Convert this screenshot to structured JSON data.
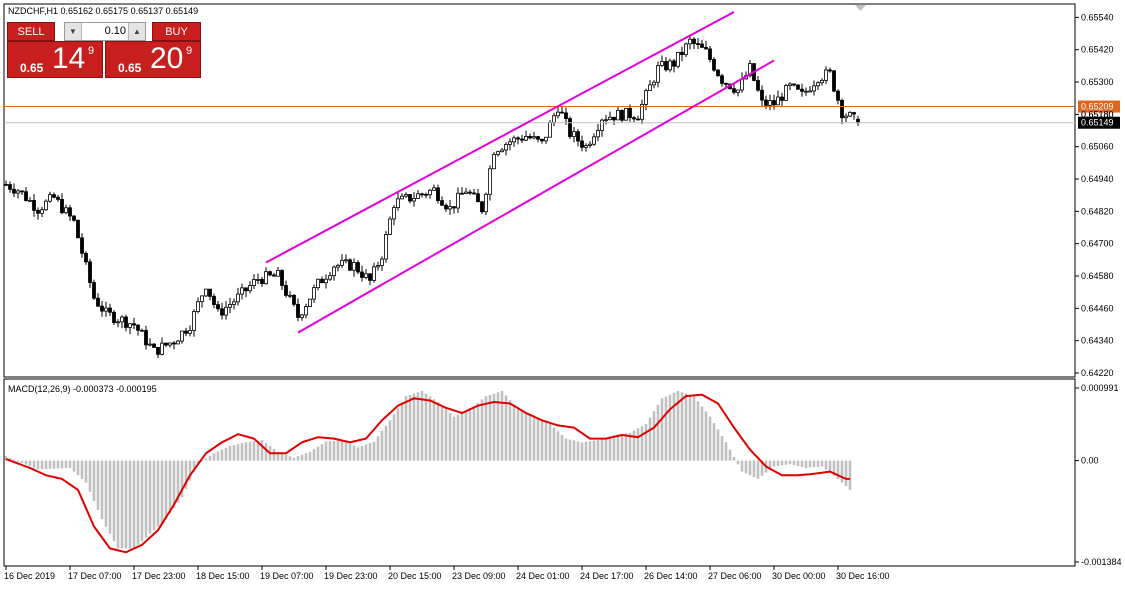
{
  "header": {
    "symbol_line": "NZDCHF,H1  0.65162 0.65175 0.65137 0.65149"
  },
  "trade_panel": {
    "sell_label": "SELL",
    "buy_label": "BUY",
    "lot_value": "0.10",
    "sell_price_small": "0.65",
    "sell_price_large": "14",
    "sell_price_sup": "9",
    "buy_price_small": "0.65",
    "buy_price_large": "20",
    "buy_price_sup": "9",
    "arrow_down": "▼",
    "arrow_up": "▲"
  },
  "colors": {
    "candle": "#000000",
    "channel": "#e000e0",
    "hline": "#e0651c",
    "bid_line": "#c0c0c0",
    "macd_hist": "#c0c0c0",
    "macd_signal": "#e00000",
    "sell_bg": "#c81e1e"
  },
  "chart_data": [
    {
      "type": "candlestick",
      "symbol": "NZDCHF",
      "timeframe": "H1",
      "ohlc_header": {
        "open": 0.65162,
        "high": 0.65175,
        "low": 0.65137,
        "close": 0.65149
      },
      "ylim": [
        0.6422,
        0.6556
      ],
      "y_ticks": [
        "0.65540",
        "0.65420",
        "0.65300",
        "0.65180",
        "0.65060",
        "0.64940",
        "0.64820",
        "0.64700",
        "0.64580",
        "0.64460",
        "0.64340",
        "0.64220"
      ],
      "x_ticks": [
        "16 Dec 2019",
        "17 Dec 07:00",
        "17 Dec 23:00",
        "18 Dec 15:00",
        "19 Dec 07:00",
        "19 Dec 23:00",
        "20 Dec 15:00",
        "23 Dec 09:00",
        "24 Dec 01:00",
        "24 Dec 17:00",
        "26 Dec 14:00",
        "27 Dec 06:00",
        "30 Dec 00:00",
        "30 Dec 16:00"
      ],
      "horizontal_line": {
        "value": 0.65209,
        "label": "0.65209"
      },
      "price_labels": [
        {
          "value": 0.6518,
          "label": "0.65180"
        },
        {
          "value": 0.65149,
          "label": "0.65149"
        }
      ],
      "channel_lines": [
        {
          "from": {
            "bar": 65,
            "price": 0.6463
          },
          "to": {
            "bar": 182,
            "price": 0.6556
          }
        },
        {
          "from": {
            "bar": 73,
            "price": 0.6437
          },
          "to": {
            "bar": 192,
            "price": 0.6538
          }
        }
      ],
      "close_anchors": [
        [
          0,
          0.6492
        ],
        [
          3,
          0.649
        ],
        [
          8,
          0.6483
        ],
        [
          12,
          0.6487
        ],
        [
          17,
          0.6478
        ],
        [
          22,
          0.645
        ],
        [
          25,
          0.6444
        ],
        [
          32,
          0.644
        ],
        [
          37,
          0.643
        ],
        [
          42,
          0.6434
        ],
        [
          46,
          0.644
        ],
        [
          50,
          0.6455
        ],
        [
          53,
          0.6444
        ],
        [
          58,
          0.645
        ],
        [
          63,
          0.6457
        ],
        [
          68,
          0.6458
        ],
        [
          73,
          0.6443
        ],
        [
          78,
          0.6455
        ],
        [
          82,
          0.6462
        ],
        [
          87,
          0.6462
        ],
        [
          91,
          0.6456
        ],
        [
          94,
          0.6466
        ],
        [
          97,
          0.6485
        ],
        [
          101,
          0.6487
        ],
        [
          107,
          0.649
        ],
        [
          111,
          0.6483
        ],
        [
          115,
          0.649
        ],
        [
          119,
          0.6483
        ],
        [
          122,
          0.6505
        ],
        [
          126,
          0.6508
        ],
        [
          130,
          0.651
        ],
        [
          134,
          0.6507
        ],
        [
          138,
          0.6521
        ],
        [
          141,
          0.6511
        ],
        [
          145,
          0.6506
        ],
        [
          149,
          0.6517
        ],
        [
          154,
          0.6518
        ],
        [
          158,
          0.6518
        ],
        [
          163,
          0.6535
        ],
        [
          167,
          0.6537
        ],
        [
          171,
          0.6545
        ],
        [
          175,
          0.6541
        ],
        [
          179,
          0.6531
        ],
        [
          183,
          0.6527
        ],
        [
          186,
          0.6535
        ],
        [
          189,
          0.6522
        ],
        [
          192,
          0.6522
        ],
        [
          196,
          0.6528
        ],
        [
          199,
          0.6525
        ],
        [
          203,
          0.6532
        ],
        [
          206,
          0.6533
        ],
        [
          209,
          0.6519
        ],
        [
          213,
          0.6515
        ]
      ]
    },
    {
      "type": "histogram+line",
      "title": "MACD(12,26,9) -0.000373 -0.000195",
      "ylim": [
        -0.001384,
        0.000991
      ],
      "y_ticks": [
        "0.000991",
        "0.00",
        "-0.001384"
      ],
      "series": [
        {
          "kind": "histogram",
          "anchors": [
            [
              0,
              6e-05
            ],
            [
              8,
              -0.00012
            ],
            [
              16,
              -0.0001
            ],
            [
              20,
              -0.0003
            ],
            [
              24,
              -0.0008
            ],
            [
              28,
              -0.0012
            ],
            [
              32,
              -0.0012
            ],
            [
              36,
              -0.001
            ],
            [
              40,
              -0.0008
            ],
            [
              44,
              -0.0005
            ],
            [
              48,
              -4e-05
            ],
            [
              52,
              0.0001
            ],
            [
              56,
              0.0002
            ],
            [
              60,
              0.00025
            ],
            [
              64,
              0.00028
            ],
            [
              68,
              0.00012
            ],
            [
              72,
              4e-05
            ],
            [
              76,
              0.00012
            ],
            [
              80,
              0.00026
            ],
            [
              84,
              0.00028
            ],
            [
              88,
              0.00018
            ],
            [
              92,
              0.00026
            ],
            [
              96,
              0.00055
            ],
            [
              100,
              0.00088
            ],
            [
              104,
              0.00095
            ],
            [
              108,
              0.0008
            ],
            [
              112,
              0.0006
            ],
            [
              116,
              0.0007
            ],
            [
              120,
              0.00088
            ],
            [
              124,
              0.00095
            ],
            [
              128,
              0.0007
            ],
            [
              132,
              0.0006
            ],
            [
              136,
              0.0005
            ],
            [
              140,
              0.0003
            ],
            [
              144,
              0.00025
            ],
            [
              148,
              0.00028
            ],
            [
              152,
              0.00035
            ],
            [
              156,
              0.00038
            ],
            [
              160,
              0.0005
            ],
            [
              164,
              0.00085
            ],
            [
              168,
              0.00095
            ],
            [
              172,
              0.00088
            ],
            [
              176,
              0.0006
            ],
            [
              180,
              0.00025
            ],
            [
              184,
              -0.00015
            ],
            [
              188,
              -0.00025
            ],
            [
              192,
              -8e-05
            ],
            [
              196,
              -5e-05
            ],
            [
              200,
              -0.0001
            ],
            [
              204,
              -8e-05
            ],
            [
              208,
              -0.00025
            ],
            [
              211,
              -0.0004
            ]
          ]
        },
        {
          "kind": "signal",
          "anchors": [
            [
              0,
              2e-05
            ],
            [
              6,
              -0.0001
            ],
            [
              10,
              -0.0002
            ],
            [
              14,
              -0.00025
            ],
            [
              18,
              -0.0004
            ],
            [
              22,
              -0.0009
            ],
            [
              26,
              -0.0012
            ],
            [
              30,
              -0.00125
            ],
            [
              34,
              -0.00115
            ],
            [
              38,
              -0.00095
            ],
            [
              42,
              -0.0006
            ],
            [
              46,
              -0.0002
            ],
            [
              50,
              0.0001
            ],
            [
              54,
              0.00025
            ],
            [
              58,
              0.00036
            ],
            [
              62,
              0.0003
            ],
            [
              66,
              0.0001
            ],
            [
              70,
              0.0001
            ],
            [
              74,
              0.00025
            ],
            [
              78,
              0.00032
            ],
            [
              82,
              0.0003
            ],
            [
              86,
              0.00025
            ],
            [
              90,
              0.0003
            ],
            [
              94,
              0.00055
            ],
            [
              98,
              0.00075
            ],
            [
              102,
              0.00085
            ],
            [
              106,
              0.00082
            ],
            [
              110,
              0.00072
            ],
            [
              114,
              0.00065
            ],
            [
              118,
              0.00075
            ],
            [
              122,
              0.0008
            ],
            [
              126,
              0.00078
            ],
            [
              130,
              0.00065
            ],
            [
              134,
              0.00055
            ],
            [
              138,
              0.00048
            ],
            [
              142,
              0.00045
            ],
            [
              146,
              0.0003
            ],
            [
              150,
              0.0003
            ],
            [
              154,
              0.00035
            ],
            [
              158,
              0.00032
            ],
            [
              162,
              0.00045
            ],
            [
              166,
              0.0007
            ],
            [
              170,
              0.00088
            ],
            [
              174,
              0.0009
            ],
            [
              178,
              0.00078
            ],
            [
              182,
              0.00045
            ],
            [
              186,
              0.00015
            ],
            [
              190,
              -8e-05
            ],
            [
              194,
              -0.0002
            ],
            [
              198,
              -0.0002
            ],
            [
              202,
              -0.00018
            ],
            [
              206,
              -0.00015
            ],
            [
              210,
              -0.00025
            ]
          ]
        }
      ]
    }
  ]
}
